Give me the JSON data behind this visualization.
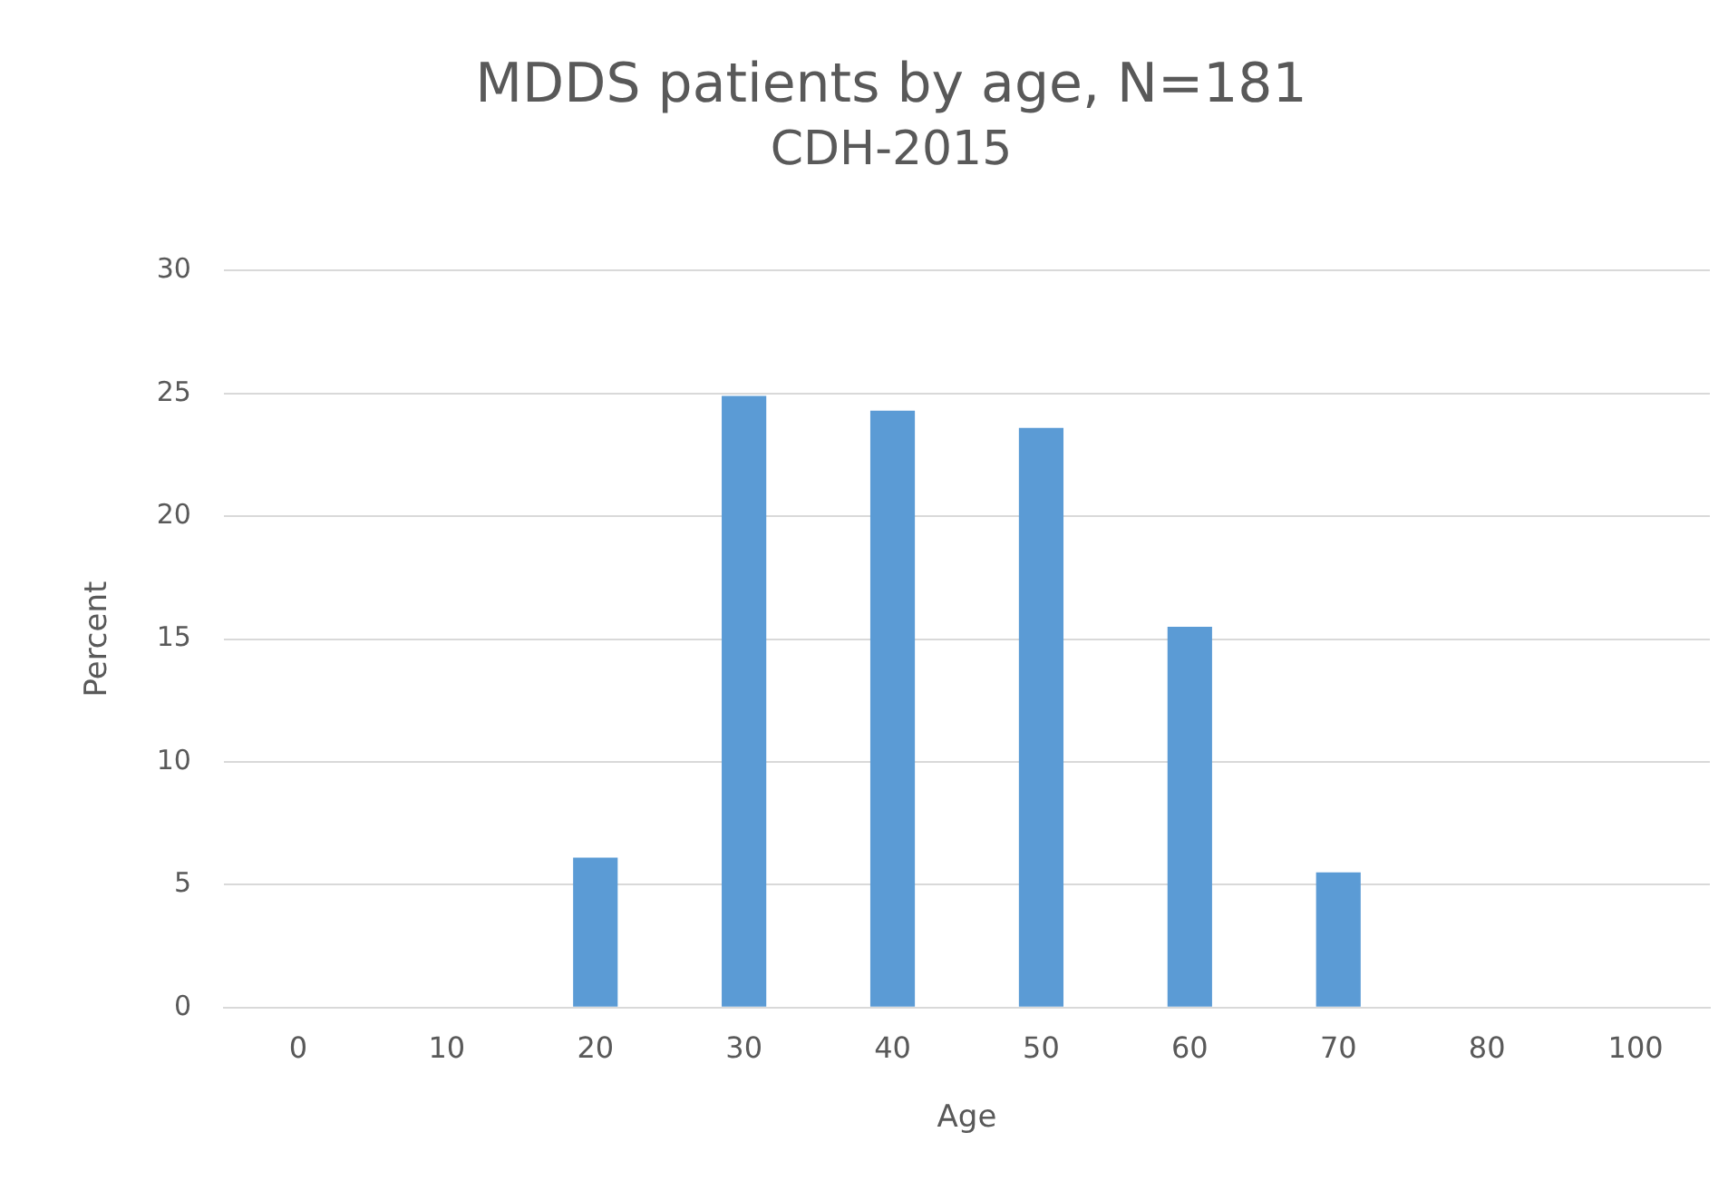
{
  "chart_data": {
    "type": "bar",
    "title": "MDDS patients by age, N=181",
    "subtitle": "CDH-2015",
    "xlabel": "Age",
    "ylabel": "Percent",
    "categories": [
      "0",
      "10",
      "20",
      "30",
      "40",
      "50",
      "60",
      "70",
      "80",
      "100"
    ],
    "values": [
      0,
      0,
      6.1,
      24.9,
      24.3,
      23.6,
      15.5,
      5.5,
      0,
      0
    ],
    "color": "#5b9bd5",
    "ylim": [
      0,
      30
    ],
    "yticks": [
      0,
      5,
      10,
      15,
      20,
      25,
      30
    ],
    "grid": "y",
    "legend": false
  }
}
